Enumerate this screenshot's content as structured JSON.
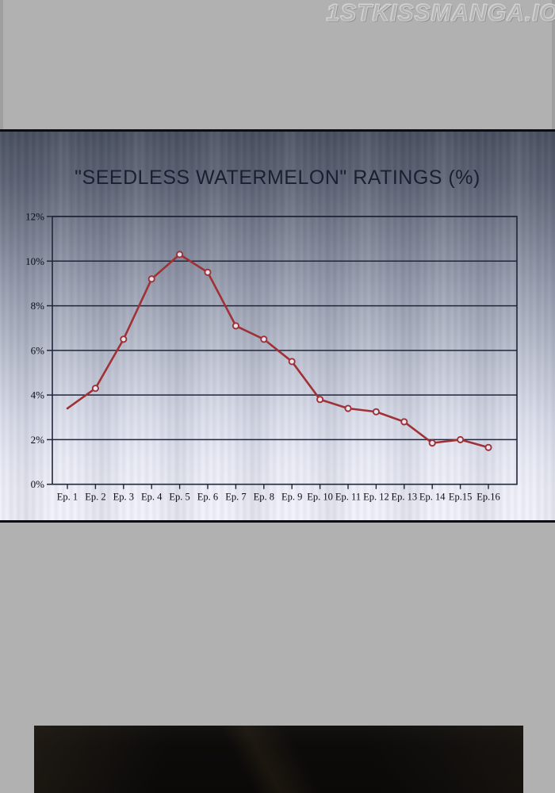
{
  "watermark": "1STKISSMANGA.IO",
  "panel": {
    "title": "\"SEEDLESS WATERMELON\" RATINGS (%)"
  },
  "chart_data": {
    "type": "line",
    "title": "\"SEEDLESS WATERMELON\" RATINGS (%)",
    "categories": [
      "Ep. 1",
      "Ep. 2",
      "Ep. 3",
      "Ep. 4",
      "Ep. 5",
      "Ep. 6",
      "Ep. 7",
      "Ep. 8",
      "Ep. 9",
      "Ep. 10",
      "Ep. 11",
      "Ep. 12",
      "Ep. 13",
      "Ep. 14",
      "Ep.15",
      "Ep.16"
    ],
    "values": [
      3.4,
      4.3,
      6.5,
      9.2,
      10.3,
      9.5,
      7.1,
      6.5,
      5.5,
      3.8,
      3.4,
      3.25,
      2.8,
      1.85,
      2.0,
      1.65
    ],
    "xlabel": "",
    "ylabel": "",
    "ylim": [
      0,
      12
    ],
    "y_tick_step": 2,
    "y_tick_labels": [
      "0%",
      "2%",
      "4%",
      "6%",
      "8%",
      "10%",
      "12%"
    ],
    "grid": true,
    "legend": "none",
    "line_color": "#a03136",
    "marker": "open-circle",
    "marker_fill": "#e3e6f0",
    "first_point_has_marker": false,
    "axis_color": "#20263a"
  },
  "colors": {
    "page_background": "#b1b1b1",
    "separator": "#0c0d12",
    "panel_top": "#49505f",
    "panel_bottom": "#f2f3fb",
    "title_text": "#1b2030",
    "next_panel": "#0c0b0a"
  }
}
